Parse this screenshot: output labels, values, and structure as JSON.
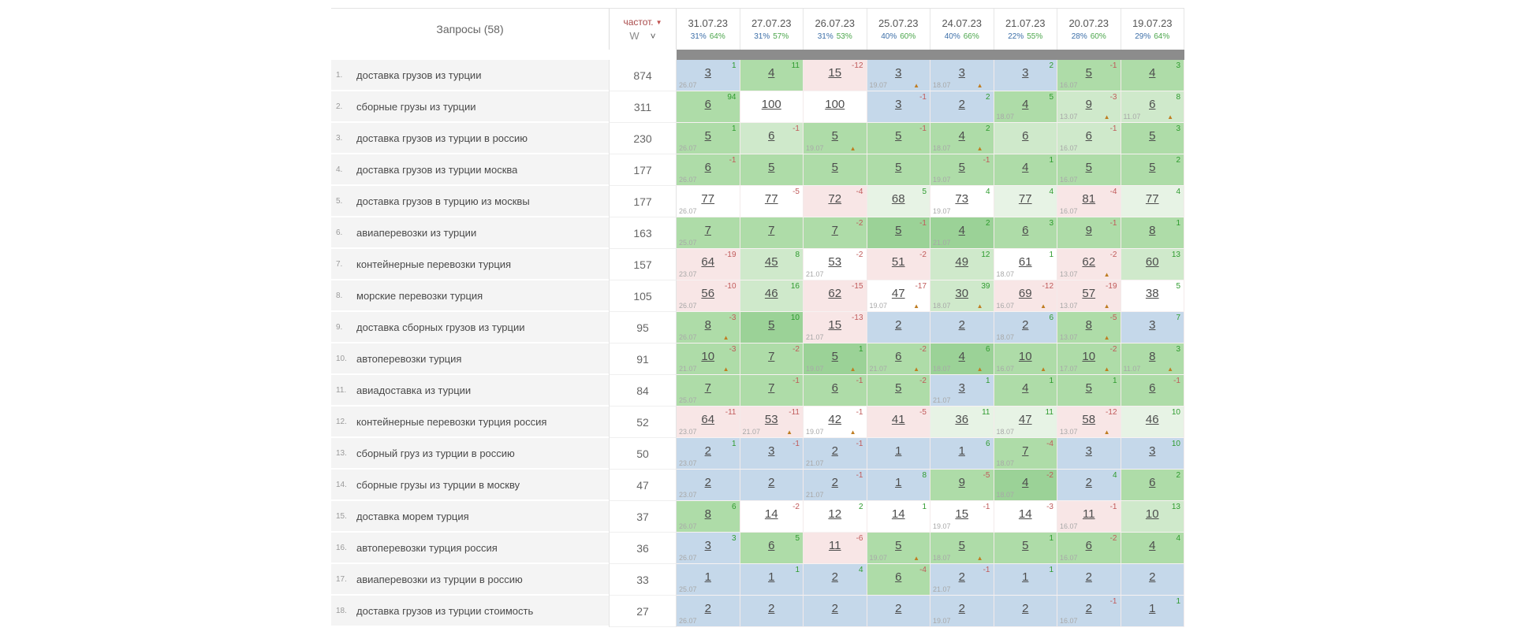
{
  "header": {
    "queries_label": "Запросы (58)",
    "freq_label": "частот.",
    "freq_sort_icon": "▼",
    "freq_unit": "W",
    "chevron_icon": "˅",
    "dates": [
      {
        "date": "31.07.23",
        "pct1": "31%",
        "pct2": "64%"
      },
      {
        "date": "27.07.23",
        "pct1": "31%",
        "pct2": "57%"
      },
      {
        "date": "26.07.23",
        "pct1": "31%",
        "pct2": "53%"
      },
      {
        "date": "25.07.23",
        "pct1": "40%",
        "pct2": "60%"
      },
      {
        "date": "24.07.23",
        "pct1": "40%",
        "pct2": "66%"
      },
      {
        "date": "21.07.23",
        "pct1": "22%",
        "pct2": "55%"
      },
      {
        "date": "20.07.23",
        "pct1": "28%",
        "pct2": "60%"
      },
      {
        "date": "19.07.23",
        "pct1": "29%",
        "pct2": "64%"
      }
    ]
  },
  "colors": {
    "accent_red": "#a94a4a",
    "pct_blue": "#3d6fa8",
    "pct_green": "#4ca64c",
    "delta_up": "#2e9b2e",
    "delta_down": "#c05a5a",
    "warn_orange": "#bf7d22",
    "gray_bar": "#8c8c8c",
    "cell_bg": {
      "b": "#c5d8ea",
      "g1": "#9bd297",
      "g2": "#aedca8",
      "g3": "#cfe9cb",
      "g4": "#e7f3e5",
      "p": "#f8e6e6",
      "w": "#ffffff"
    }
  },
  "rows": [
    {
      "num": "1.",
      "keyword": "доставка грузов из турции",
      "freq": "874",
      "cells": [
        {
          "pos": "3",
          "delta": "1",
          "sub": "26.07",
          "bg": "b"
        },
        {
          "pos": "4",
          "delta": "11",
          "bg": "g2"
        },
        {
          "pos": "15",
          "delta": "-12",
          "bg": "p"
        },
        {
          "pos": "3",
          "sub": "19.07",
          "warn": true,
          "bg": "b"
        },
        {
          "pos": "3",
          "sub": "18.07",
          "warn": true,
          "bg": "b"
        },
        {
          "pos": "3",
          "delta": "2",
          "bg": "b"
        },
        {
          "pos": "5",
          "delta": "-1",
          "sub": "16.07",
          "bg": "g2"
        },
        {
          "pos": "4",
          "delta": "3",
          "bg": "g2"
        }
      ]
    },
    {
      "num": "2.",
      "keyword": "сборные грузы из турции",
      "freq": "311",
      "cells": [
        {
          "pos": "6",
          "delta": "94",
          "bg": "g2"
        },
        {
          "pos": "100",
          "bg": "w"
        },
        {
          "pos": "100",
          "bg": "w"
        },
        {
          "pos": "3",
          "delta": "-1",
          "bg": "b"
        },
        {
          "pos": "2",
          "delta": "2",
          "bg": "b"
        },
        {
          "pos": "4",
          "delta": "5",
          "sub": "18.07",
          "bg": "g2"
        },
        {
          "pos": "9",
          "delta": "-3",
          "sub": "13.07",
          "warn": true,
          "bg": "g3"
        },
        {
          "pos": "6",
          "delta": "8",
          "sub": "11.07",
          "warn": true,
          "bg": "g3"
        }
      ]
    },
    {
      "num": "3.",
      "keyword": "доставка грузов из турции в россию",
      "freq": "230",
      "cells": [
        {
          "pos": "5",
          "delta": "1",
          "sub": "26.07",
          "bg": "g2"
        },
        {
          "pos": "6",
          "delta": "-1",
          "bg": "g3"
        },
        {
          "pos": "5",
          "sub": "19.07",
          "warn": true,
          "bg": "g2"
        },
        {
          "pos": "5",
          "delta": "-1",
          "bg": "g2"
        },
        {
          "pos": "4",
          "delta": "2",
          "sub": "18.07",
          "warn": true,
          "bg": "g2"
        },
        {
          "pos": "6",
          "bg": "g3"
        },
        {
          "pos": "6",
          "delta": "-1",
          "sub": "16.07",
          "bg": "g3"
        },
        {
          "pos": "5",
          "delta": "3",
          "bg": "g2"
        }
      ]
    },
    {
      "num": "4.",
      "keyword": "доставка грузов из турции москва",
      "freq": "177",
      "cells": [
        {
          "pos": "6",
          "delta": "-1",
          "sub": "26.07",
          "bg": "g2"
        },
        {
          "pos": "5",
          "bg": "g2"
        },
        {
          "pos": "5",
          "bg": "g2"
        },
        {
          "pos": "5",
          "bg": "g2"
        },
        {
          "pos": "5",
          "delta": "-1",
          "sub": "19.07",
          "bg": "g2"
        },
        {
          "pos": "4",
          "delta": "1",
          "bg": "g2"
        },
        {
          "pos": "5",
          "sub": "16.07",
          "bg": "g2"
        },
        {
          "pos": "5",
          "delta": "2",
          "bg": "g2"
        }
      ]
    },
    {
      "num": "5.",
      "keyword": "доставка грузов в турцию из москвы",
      "freq": "177",
      "cells": [
        {
          "pos": "77",
          "sub": "26.07",
          "bg": "w"
        },
        {
          "pos": "77",
          "delta": "-5",
          "bg": "w"
        },
        {
          "pos": "72",
          "delta": "-4",
          "bg": "p"
        },
        {
          "pos": "68",
          "delta": "5",
          "bg": "g4"
        },
        {
          "pos": "73",
          "delta": "4",
          "sub": "19.07",
          "bg": "w"
        },
        {
          "pos": "77",
          "delta": "4",
          "bg": "g4"
        },
        {
          "pos": "81",
          "delta": "-4",
          "sub": "16.07",
          "bg": "p"
        },
        {
          "pos": "77",
          "delta": "4",
          "bg": "g4"
        }
      ]
    },
    {
      "num": "6.",
      "keyword": "авиаперевозки из турции",
      "freq": "163",
      "cells": [
        {
          "pos": "7",
          "sub": "25.07",
          "bg": "g2"
        },
        {
          "pos": "7",
          "bg": "g2"
        },
        {
          "pos": "7",
          "delta": "-2",
          "bg": "g2"
        },
        {
          "pos": "5",
          "delta": "-1",
          "bg": "g1"
        },
        {
          "pos": "4",
          "delta": "2",
          "sub": "21.07",
          "bg": "g1"
        },
        {
          "pos": "6",
          "delta": "3",
          "bg": "g2"
        },
        {
          "pos": "9",
          "delta": "-1",
          "bg": "g2"
        },
        {
          "pos": "8",
          "delta": "1",
          "bg": "g2"
        }
      ]
    },
    {
      "num": "7.",
      "keyword": "контейнерные перевозки турция",
      "freq": "157",
      "cells": [
        {
          "pos": "64",
          "delta": "-19",
          "sub": "23.07",
          "bg": "p"
        },
        {
          "pos": "45",
          "delta": "8",
          "bg": "g3"
        },
        {
          "pos": "53",
          "delta": "-2",
          "sub": "21.07",
          "bg": "w"
        },
        {
          "pos": "51",
          "delta": "-2",
          "bg": "p"
        },
        {
          "pos": "49",
          "delta": "12",
          "bg": "g3"
        },
        {
          "pos": "61",
          "delta": "1",
          "sub": "18.07",
          "bg": "w"
        },
        {
          "pos": "62",
          "delta": "-2",
          "sub": "13.07",
          "warn": true,
          "bg": "p"
        },
        {
          "pos": "60",
          "delta": "13",
          "bg": "g3"
        }
      ]
    },
    {
      "num": "8.",
      "keyword": "морские перевозки турция",
      "freq": "105",
      "cells": [
        {
          "pos": "56",
          "delta": "-10",
          "sub": "26.07",
          "bg": "p"
        },
        {
          "pos": "46",
          "delta": "16",
          "bg": "g3"
        },
        {
          "pos": "62",
          "delta": "-15",
          "bg": "p"
        },
        {
          "pos": "47",
          "delta": "-17",
          "sub": "19.07",
          "warn": true,
          "bg": "w"
        },
        {
          "pos": "30",
          "delta": "39",
          "sub": "18.07",
          "warn": true,
          "bg": "g3"
        },
        {
          "pos": "69",
          "delta": "-12",
          "sub": "16.07",
          "warn": true,
          "bg": "p"
        },
        {
          "pos": "57",
          "delta": "-19",
          "sub": "13.07",
          "warn": true,
          "bg": "p"
        },
        {
          "pos": "38",
          "delta": "5",
          "bg": "w"
        }
      ]
    },
    {
      "num": "9.",
      "keyword": "доставка сборных грузов из турции",
      "freq": "95",
      "cells": [
        {
          "pos": "8",
          "delta": "-3",
          "sub": "26.07",
          "warn": true,
          "bg": "g2"
        },
        {
          "pos": "5",
          "delta": "10",
          "bg": "g1"
        },
        {
          "pos": "15",
          "delta": "-13",
          "sub": "21.07",
          "bg": "p"
        },
        {
          "pos": "2",
          "bg": "b"
        },
        {
          "pos": "2",
          "bg": "b"
        },
        {
          "pos": "2",
          "delta": "6",
          "sub": "18.07",
          "bg": "b"
        },
        {
          "pos": "8",
          "delta": "-5",
          "sub": "13.07",
          "warn": true,
          "bg": "g2"
        },
        {
          "pos": "3",
          "delta": "7",
          "bg": "b"
        }
      ]
    },
    {
      "num": "10.",
      "keyword": "автоперевозки турция",
      "freq": "91",
      "cells": [
        {
          "pos": "10",
          "delta": "-3",
          "sub": "21.07",
          "warn": true,
          "bg": "g2"
        },
        {
          "pos": "7",
          "delta": "-2",
          "bg": "g2"
        },
        {
          "pos": "5",
          "delta": "1",
          "sub": "19.07",
          "warn": true,
          "bg": "g1"
        },
        {
          "pos": "6",
          "delta": "-2",
          "sub": "21.07",
          "warn": true,
          "bg": "g2"
        },
        {
          "pos": "4",
          "delta": "6",
          "sub": "18.07",
          "warn": true,
          "bg": "g1"
        },
        {
          "pos": "10",
          "sub": "16.07",
          "warn": true,
          "bg": "g2"
        },
        {
          "pos": "10",
          "delta": "-2",
          "sub": "17.07",
          "warn": true,
          "bg": "g2"
        },
        {
          "pos": "8",
          "delta": "3",
          "sub": "11.07",
          "warn": true,
          "bg": "g2"
        }
      ]
    },
    {
      "num": "11.",
      "keyword": "авиадоставка из турции",
      "freq": "84",
      "cells": [
        {
          "pos": "7",
          "sub": "25.07",
          "bg": "g2"
        },
        {
          "pos": "7",
          "delta": "-1",
          "bg": "g2"
        },
        {
          "pos": "6",
          "delta": "-1",
          "bg": "g2"
        },
        {
          "pos": "5",
          "delta": "-2",
          "bg": "g2"
        },
        {
          "pos": "3",
          "delta": "1",
          "sub": "21.07",
          "bg": "b"
        },
        {
          "pos": "4",
          "delta": "1",
          "bg": "g2"
        },
        {
          "pos": "5",
          "delta": "1",
          "bg": "g2"
        },
        {
          "pos": "6",
          "delta": "-1",
          "bg": "g2"
        }
      ]
    },
    {
      "num": "12.",
      "keyword": "контейнерные перевозки турция россия",
      "freq": "52",
      "cells": [
        {
          "pos": "64",
          "delta": "-11",
          "sub": "23.07",
          "bg": "p"
        },
        {
          "pos": "53",
          "delta": "-11",
          "sub": "21.07",
          "warn": true,
          "bg": "p"
        },
        {
          "pos": "42",
          "delta": "-1",
          "sub": "19.07",
          "warn": true,
          "bg": "w"
        },
        {
          "pos": "41",
          "delta": "-5",
          "bg": "p"
        },
        {
          "pos": "36",
          "delta": "11",
          "bg": "g4"
        },
        {
          "pos": "47",
          "delta": "11",
          "sub": "18.07",
          "bg": "g4"
        },
        {
          "pos": "58",
          "delta": "-12",
          "sub": "13.07",
          "warn": true,
          "bg": "p"
        },
        {
          "pos": "46",
          "delta": "10",
          "bg": "g4"
        }
      ]
    },
    {
      "num": "13.",
      "keyword": "сборный груз из турции в россию",
      "freq": "50",
      "cells": [
        {
          "pos": "2",
          "delta": "1",
          "sub": "23.07",
          "bg": "b"
        },
        {
          "pos": "3",
          "delta": "-1",
          "bg": "b"
        },
        {
          "pos": "2",
          "delta": "-1",
          "sub": "21.07",
          "bg": "b"
        },
        {
          "pos": "1",
          "bg": "b"
        },
        {
          "pos": "1",
          "delta": "6",
          "bg": "b"
        },
        {
          "pos": "7",
          "delta": "-4",
          "sub": "18.07",
          "bg": "g2"
        },
        {
          "pos": "3",
          "bg": "b"
        },
        {
          "pos": "3",
          "delta": "10",
          "bg": "b"
        }
      ]
    },
    {
      "num": "14.",
      "keyword": "сборные грузы из турции в москву",
      "freq": "47",
      "cells": [
        {
          "pos": "2",
          "sub": "23.07",
          "bg": "b"
        },
        {
          "pos": "2",
          "bg": "b"
        },
        {
          "pos": "2",
          "delta": "-1",
          "sub": "21.07",
          "bg": "b"
        },
        {
          "pos": "1",
          "delta": "8",
          "bg": "b"
        },
        {
          "pos": "9",
          "delta": "-5",
          "bg": "g2"
        },
        {
          "pos": "4",
          "delta": "-2",
          "sub": "18.07",
          "bg": "g1"
        },
        {
          "pos": "2",
          "delta": "4",
          "bg": "b"
        },
        {
          "pos": "6",
          "delta": "2",
          "bg": "g2"
        }
      ]
    },
    {
      "num": "15.",
      "keyword": "доставка морем турция",
      "freq": "37",
      "cells": [
        {
          "pos": "8",
          "delta": "6",
          "sub": "26.07",
          "bg": "g2"
        },
        {
          "pos": "14",
          "delta": "-2",
          "bg": "w"
        },
        {
          "pos": "12",
          "delta": "2",
          "bg": "w"
        },
        {
          "pos": "14",
          "delta": "1",
          "bg": "w"
        },
        {
          "pos": "15",
          "delta": "-1",
          "sub": "19.07",
          "bg": "w"
        },
        {
          "pos": "14",
          "delta": "-3",
          "bg": "w"
        },
        {
          "pos": "11",
          "delta": "-1",
          "sub": "16.07",
          "bg": "p"
        },
        {
          "pos": "10",
          "delta": "13",
          "bg": "g3"
        }
      ]
    },
    {
      "num": "16.",
      "keyword": "автоперевозки турция россия",
      "freq": "36",
      "cells": [
        {
          "pos": "3",
          "delta": "3",
          "sub": "26.07",
          "bg": "b"
        },
        {
          "pos": "6",
          "delta": "5",
          "bg": "g2"
        },
        {
          "pos": "11",
          "delta": "-6",
          "bg": "p"
        },
        {
          "pos": "5",
          "sub": "19.07",
          "warn": true,
          "bg": "g2"
        },
        {
          "pos": "5",
          "sub": "18.07",
          "warn": true,
          "bg": "g2"
        },
        {
          "pos": "5",
          "delta": "1",
          "bg": "g2"
        },
        {
          "pos": "6",
          "delta": "-2",
          "sub": "16.07",
          "bg": "g2"
        },
        {
          "pos": "4",
          "delta": "4",
          "bg": "g2"
        }
      ]
    },
    {
      "num": "17.",
      "keyword": "авиаперевозки из турции в россию",
      "freq": "33",
      "cells": [
        {
          "pos": "1",
          "sub": "25.07",
          "bg": "b"
        },
        {
          "pos": "1",
          "delta": "1",
          "bg": "b"
        },
        {
          "pos": "2",
          "delta": "4",
          "bg": "b"
        },
        {
          "pos": "6",
          "delta": "-4",
          "bg": "g2"
        },
        {
          "pos": "2",
          "delta": "-1",
          "sub": "21.07",
          "bg": "b"
        },
        {
          "pos": "1",
          "delta": "1",
          "bg": "b"
        },
        {
          "pos": "2",
          "bg": "b"
        },
        {
          "pos": "2",
          "bg": "b"
        }
      ]
    },
    {
      "num": "18.",
      "keyword": "доставка грузов из турции стоимость",
      "freq": "27",
      "cells": [
        {
          "pos": "2",
          "sub": "26.07",
          "bg": "b"
        },
        {
          "pos": "2",
          "bg": "b"
        },
        {
          "pos": "2",
          "bg": "b"
        },
        {
          "pos": "2",
          "bg": "b"
        },
        {
          "pos": "2",
          "sub": "19.07",
          "bg": "b"
        },
        {
          "pos": "2",
          "bg": "b"
        },
        {
          "pos": "2",
          "delta": "-1",
          "sub": "16.07",
          "bg": "b"
        },
        {
          "pos": "1",
          "delta": "1",
          "bg": "b"
        }
      ]
    }
  ]
}
